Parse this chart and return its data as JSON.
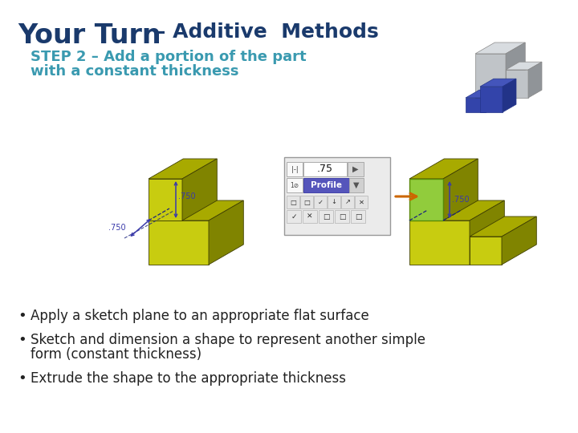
{
  "title_part1": "Your Turn",
  "title_dash": " – ",
  "title_part2": "Additive  Methods",
  "step_text_line1": "STEP 2 – Add a portion of the part",
  "step_text_line2": "with a constant thickness",
  "bullet1": "Apply a sketch plane to an appropriate flat surface",
  "bullet2": "Sketch and dimension a shape to represent another simple",
  "bullet2b": "form (constant thickness)",
  "bullet3": "Extrude the shape to the appropriate thickness",
  "bg_color": "#ffffff",
  "title_color1": "#1a3a6c",
  "title_color2": "#1a3a6c",
  "step_color": "#3a9ab0",
  "bullet_color": "#222222",
  "yg_front": "#c8cc10",
  "yg_top": "#a8aa00",
  "yg_right": "#808400",
  "blue_dark": "#1a237e",
  "dim_color": "#3a3aaa",
  "gray_face": "#c0c4c8",
  "gray_top": "#d8dce0",
  "gray_right": "#909498",
  "blue_face": "#3344aa",
  "blue_top": "#4455bb",
  "blue_right": "#223388"
}
